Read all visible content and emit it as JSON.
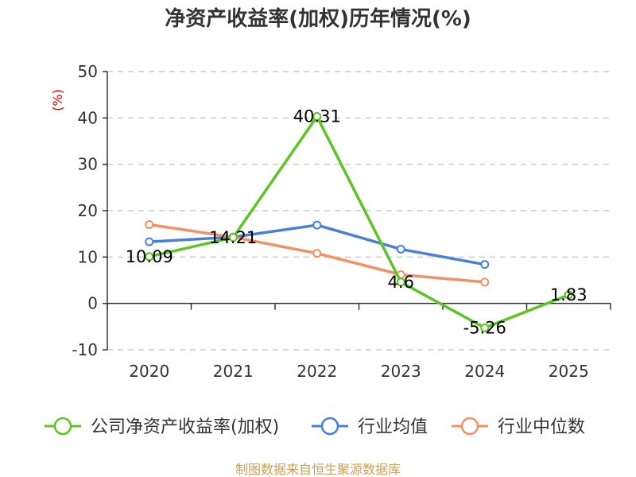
{
  "chart_data": {
    "type": "line",
    "title": "净资产收益率(加权)历年情况(%)",
    "ylabel": "(%)",
    "xlabel": "",
    "categories": [
      "2020",
      "2021",
      "2022",
      "2023",
      "2024",
      "2025"
    ],
    "ylim": [
      -10,
      50
    ],
    "yticks": [
      -10,
      0,
      10,
      20,
      30,
      40,
      50
    ],
    "grid": true,
    "legend_position": "bottom",
    "series": [
      {
        "name": "公司净资产收益率(加权)",
        "color": "#5cc423",
        "values": [
          10.09,
          14.21,
          40.31,
          4.6,
          -5.26,
          1.83
        ],
        "labels": [
          "10.09",
          "14.21",
          "40.31",
          "4.6",
          "-5.26",
          "1.83"
        ]
      },
      {
        "name": "行业均值",
        "color": "#4a7fd9",
        "values": [
          13.3,
          14.3,
          16.9,
          11.7,
          8.4,
          null
        ]
      },
      {
        "name": "行业中位数",
        "color": "#f39064",
        "values": [
          17.0,
          14.3,
          10.8,
          6.2,
          4.6,
          null
        ]
      }
    ]
  },
  "source_note": "制图数据来自恒生聚源数据库",
  "colors": {
    "axis": "#333333",
    "grid": "#cccccc",
    "unit": "#dd0000",
    "source": "#c8a055"
  }
}
